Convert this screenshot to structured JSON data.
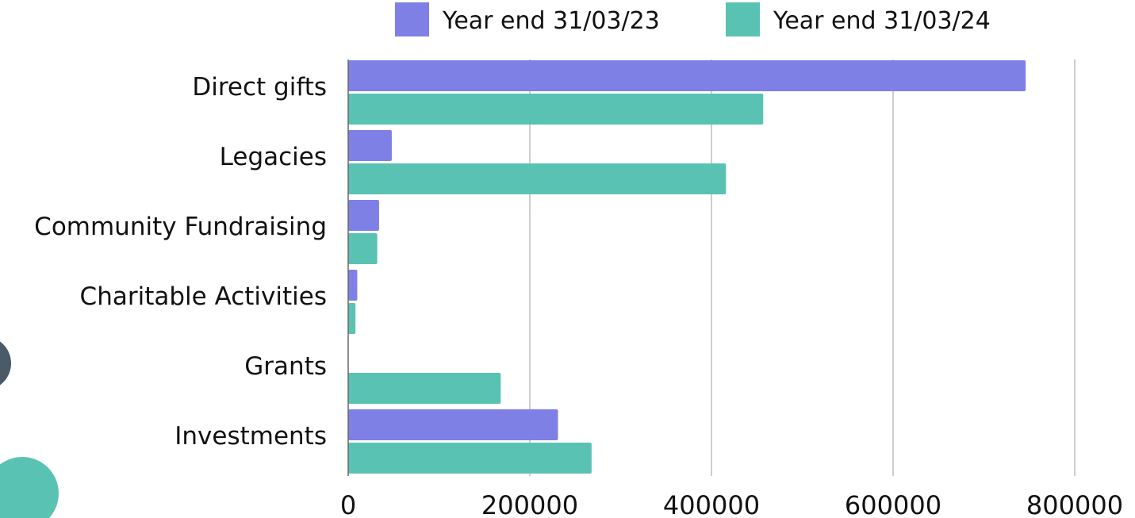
{
  "colors": {
    "series_2023": "#7f80e6",
    "series_2024": "#59c2b3",
    "gridline": "#bdbdbd",
    "deco_dark": "#4a5a66",
    "deco_teal": "#59c2b3"
  },
  "chart_data": {
    "type": "bar",
    "orientation": "horizontal",
    "title": "",
    "xlabel": "",
    "ylabel": "",
    "categories": [
      "Direct gifts",
      "Legacies",
      "Community Fundraising",
      "Charitable Activities",
      "Grants",
      "Investments"
    ],
    "series": [
      {
        "name": "Year end 31/03/23",
        "values": [
          746000,
          48000,
          34000,
          10000,
          0,
          231000
        ]
      },
      {
        "name": "Year end 31/03/24",
        "values": [
          457000,
          416000,
          32000,
          8000,
          168000,
          268000
        ]
      }
    ],
    "xlim": [
      0,
      800000
    ],
    "xticks": [
      "0",
      "200000",
      "400000",
      "600000",
      "800000"
    ],
    "grid": "vertical",
    "legend": "top"
  }
}
